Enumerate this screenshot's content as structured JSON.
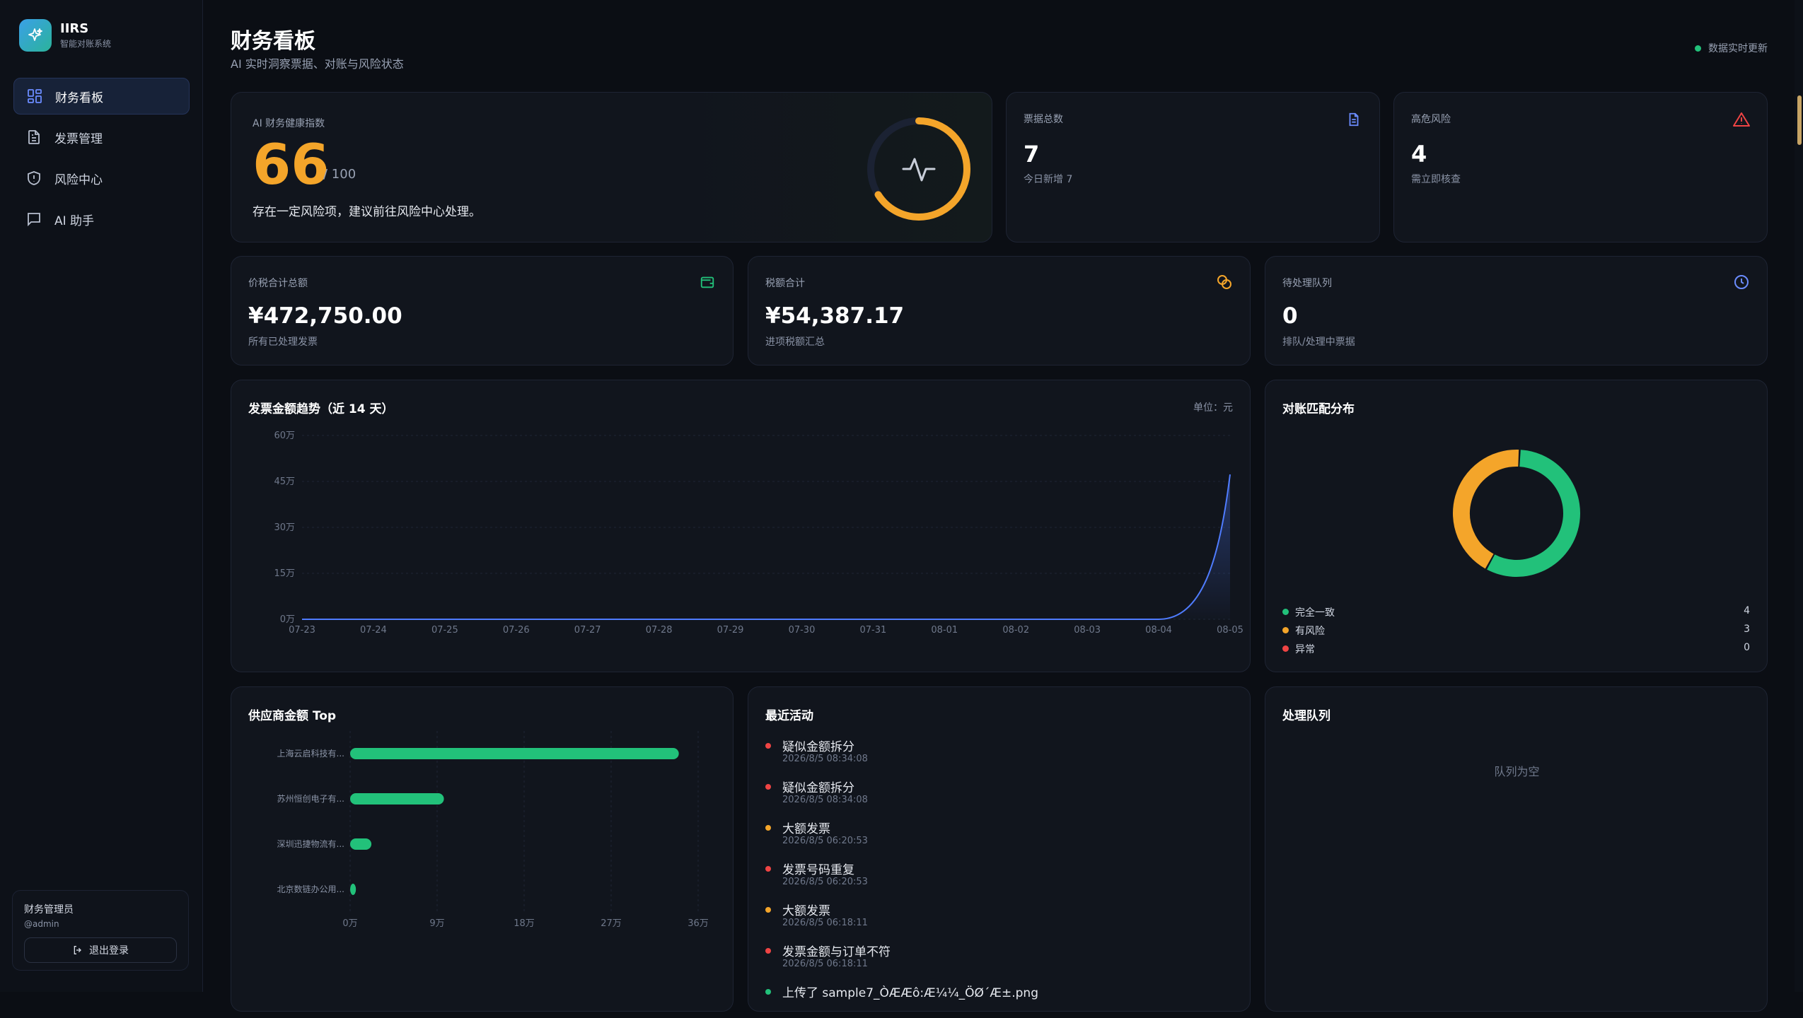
{
  "brand": {
    "title": "IIRS",
    "subtitle": "智能对账系统"
  },
  "nav": [
    {
      "label": "财务看板",
      "icon": "dashboard-icon",
      "active": true
    },
    {
      "label": "发票管理",
      "icon": "document-icon",
      "active": false
    },
    {
      "label": "风险中心",
      "icon": "shield-icon",
      "active": false
    },
    {
      "label": "AI 助手",
      "icon": "chat-icon",
      "active": false
    }
  ],
  "user": {
    "name": "财务管理员",
    "handle": "@admin",
    "logout_label": "退出登录"
  },
  "header": {
    "title": "财务看板",
    "subtitle": "AI 实时洞察票据、对账与风险状态",
    "live_label": "数据实时更新"
  },
  "health": {
    "label": "AI 财务健康指数",
    "score": "66",
    "max": "/ 100",
    "score_value": 66,
    "message": "存在一定风险项，建议前往风险中心处理。"
  },
  "stats_top": [
    {
      "label": "票据总数",
      "value": "7",
      "sub": "今日新增 7",
      "icon": "document-icon",
      "color": "#6b8cff"
    },
    {
      "label": "高危风险",
      "value": "4",
      "sub": "需立即核查",
      "icon": "warning-icon",
      "color": "#ef4444"
    }
  ],
  "stats_mid": [
    {
      "label": "价税合计总额",
      "value": "¥472,750.00",
      "sub": "所有已处理发票",
      "icon": "wallet-icon",
      "color": "#22c17a"
    },
    {
      "label": "税额合计",
      "value": "¥54,387.17",
      "sub": "进项税额汇总",
      "icon": "coins-icon",
      "color": "#f4a52a"
    },
    {
      "label": "待处理队列",
      "value": "0",
      "sub": "排队/处理中票据",
      "icon": "clock-icon",
      "color": "#6b8cff"
    }
  ],
  "trend": {
    "title": "发票金额趋势（近 14 天）",
    "unit": "单位：元"
  },
  "match": {
    "title": "对账匹配分布",
    "legend": [
      {
        "label": "完全一致",
        "value": "4",
        "color": "#22c17a"
      },
      {
        "label": "有风险",
        "value": "3",
        "color": "#f4a52a"
      },
      {
        "label": "异常",
        "value": "0",
        "color": "#ef4444"
      }
    ]
  },
  "supplier": {
    "title": "供应商金额 Top"
  },
  "activity": {
    "title": "最近活动",
    "items": [
      {
        "title": "疑似金额拆分",
        "time": "2026/8/5 08:34:08",
        "color": "#ef4444"
      },
      {
        "title": "疑似金额拆分",
        "time": "2026/8/5 08:34:08",
        "color": "#ef4444"
      },
      {
        "title": "大额发票",
        "time": "2026/8/5 06:20:53",
        "color": "#f4a52a"
      },
      {
        "title": "发票号码重复",
        "time": "2026/8/5 06:20:53",
        "color": "#ef4444"
      },
      {
        "title": "大额发票",
        "time": "2026/8/5 06:18:11",
        "color": "#f4a52a"
      },
      {
        "title": "发票金额与订单不符",
        "time": "2026/8/5 06:18:11",
        "color": "#ef4444"
      },
      {
        "title": "上传了 sample7_ÒÆÆô:Æ¼¼_ÖØ´Æ±.png",
        "time": "",
        "color": "#22c17a"
      }
    ]
  },
  "queue": {
    "title": "处理队列",
    "empty_label": "队列为空"
  },
  "chart_data": [
    {
      "type": "area",
      "title": "发票金额趋势（近 14 天）",
      "xlabel": "",
      "ylabel": "",
      "x": [
        "07-23",
        "07-24",
        "07-25",
        "07-26",
        "07-27",
        "07-28",
        "07-29",
        "07-30",
        "07-31",
        "08-01",
        "08-02",
        "08-03",
        "08-04",
        "08-05"
      ],
      "values": [
        0,
        0,
        0,
        0,
        0,
        0,
        0,
        0,
        0,
        0,
        0,
        0,
        0,
        472750
      ],
      "yticks": [
        "0万",
        "15万",
        "30万",
        "45万",
        "60万"
      ],
      "ylim": [
        0,
        600000
      ],
      "grid": true,
      "color": "#4f7cff"
    },
    {
      "type": "pie",
      "title": "对账匹配分布",
      "categories": [
        "完全一致",
        "有风险",
        "异常"
      ],
      "values": [
        4,
        3,
        0
      ],
      "colors": [
        "#22c17a",
        "#f4a52a",
        "#ef4444"
      ]
    },
    {
      "type": "bar",
      "title": "供应商金额 Top",
      "categories": [
        "上海云启科技有...",
        "苏州恒创电子有...",
        "深圳迅捷物流有...",
        "北京数链办公用..."
      ],
      "values": [
        340000,
        97000,
        22000,
        6000
      ],
      "xticks": [
        "0万",
        "9万",
        "18万",
        "27万",
        "36万"
      ],
      "xlim": [
        0,
        360000
      ],
      "color": "#22c17a"
    }
  ]
}
